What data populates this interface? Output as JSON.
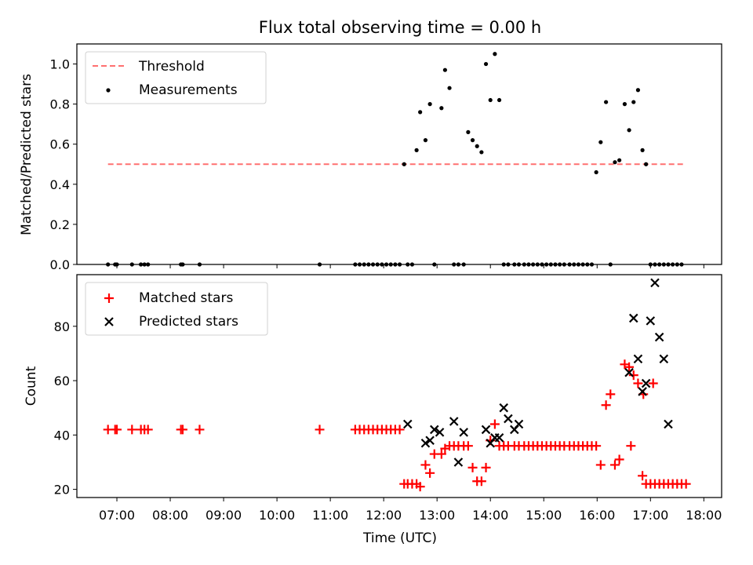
{
  "chart_data": [
    {
      "type": "scatter",
      "title": "Flux total observing time = 0.00 h",
      "xlabel": "",
      "ylabel": "Matched/Predicted stars",
      "ylim": [
        0,
        1.1
      ],
      "yticks": [
        "0.0",
        "0.2",
        "0.4",
        "0.6",
        "0.8",
        "1.0"
      ],
      "legend_position": "top-left",
      "threshold": {
        "name": "Threshold",
        "value": 0.5,
        "x_start": "06:50",
        "x_end": "17:37",
        "color": "#ff7070",
        "style": "dashed"
      },
      "series": [
        {
          "name": "Measurements",
          "color": "#000000",
          "marker": "dot",
          "x": [
            "06:50",
            "06:58",
            "07:00",
            "07:17",
            "07:27",
            "07:31",
            "07:35",
            "08:12",
            "08:14",
            "08:33",
            "10:48",
            "11:28",
            "11:33",
            "11:38",
            "11:43",
            "11:48",
            "11:53",
            "11:58",
            "12:03",
            "12:08",
            "12:13",
            "12:18",
            "12:23",
            "12:27",
            "12:32",
            "12:37",
            "12:41",
            "12:47",
            "12:52",
            "12:57",
            "13:05",
            "13:09",
            "13:14",
            "13:19",
            "13:24",
            "13:30",
            "13:35",
            "13:40",
            "13:45",
            "13:50",
            "13:55",
            "14:00",
            "14:05",
            "14:10",
            "14:15",
            "14:20",
            "14:27",
            "14:32",
            "14:38",
            "14:43",
            "14:48",
            "14:53",
            "14:58",
            "15:03",
            "15:08",
            "15:13",
            "15:18",
            "15:23",
            "15:29",
            "15:34",
            "15:39",
            "15:44",
            "15:49",
            "15:54",
            "15:59",
            "16:04",
            "16:10",
            "16:15",
            "16:20",
            "16:25",
            "16:31",
            "16:36",
            "16:41",
            "16:46",
            "16:51",
            "16:55",
            "17:00",
            "17:05",
            "17:10",
            "17:15",
            "17:20",
            "17:25",
            "17:30",
            "17:35"
          ],
          "y": [
            0,
            0,
            0,
            0,
            0,
            0,
            0,
            0,
            0,
            0,
            0,
            0,
            0,
            0,
            0,
            0,
            0,
            0,
            0,
            0,
            0,
            0,
            0.5,
            0,
            0,
            0.57,
            0.76,
            0.62,
            0.8,
            0,
            0.78,
            0.97,
            0.88,
            0,
            0,
            0,
            0.66,
            0.62,
            0.59,
            0.56,
            1.0,
            0.82,
            1.05,
            0.82,
            0,
            0,
            0,
            0,
            0,
            0,
            0,
            0,
            0,
            0,
            0,
            0,
            0,
            0,
            0,
            0,
            0,
            0,
            0,
            0,
            0.46,
            0.61,
            0.81,
            0,
            0.51,
            0.52,
            0.8,
            0.67,
            0.81,
            0.87,
            0.57,
            0.5,
            0,
            0,
            0,
            0,
            0,
            0,
            0,
            0
          ]
        }
      ]
    },
    {
      "type": "scatter",
      "xlabel": "Time (UTC)",
      "ylabel": "Count",
      "ylim": [
        17,
        99
      ],
      "yticks": [
        "20",
        "40",
        "60",
        "80"
      ],
      "xlim": [
        "06:15",
        "18:20"
      ],
      "xticks": [
        "07:00",
        "08:00",
        "09:00",
        "10:00",
        "11:00",
        "12:00",
        "13:00",
        "14:00",
        "15:00",
        "16:00",
        "17:00",
        "18:00"
      ],
      "legend_position": "top-left",
      "series": [
        {
          "name": "Matched stars",
          "color": "#ff0000",
          "marker": "plus",
          "x": [
            "06:50",
            "06:58",
            "07:00",
            "07:17",
            "07:27",
            "07:31",
            "07:35",
            "08:12",
            "08:14",
            "08:33",
            "10:48",
            "11:28",
            "11:33",
            "11:38",
            "11:43",
            "11:48",
            "11:53",
            "11:58",
            "12:03",
            "12:08",
            "12:13",
            "12:18",
            "12:23",
            "12:27",
            "12:32",
            "12:37",
            "12:41",
            "12:47",
            "12:52",
            "12:57",
            "13:05",
            "13:09",
            "13:14",
            "13:19",
            "13:24",
            "13:30",
            "13:35",
            "13:40",
            "13:45",
            "13:50",
            "13:55",
            "14:00",
            "14:05",
            "14:10",
            "14:15",
            "14:20",
            "14:27",
            "14:32",
            "14:38",
            "14:43",
            "14:48",
            "14:53",
            "14:58",
            "15:03",
            "15:08",
            "15:13",
            "15:18",
            "15:23",
            "15:29",
            "15:34",
            "15:39",
            "15:44",
            "15:49",
            "15:54",
            "15:59",
            "16:04",
            "16:10",
            "16:15",
            "16:20",
            "16:25",
            "16:31",
            "16:36",
            "16:41",
            "16:46",
            "16:51",
            "16:55",
            "17:00",
            "17:05",
            "17:10",
            "17:15",
            "17:20",
            "17:25",
            "17:30",
            "17:35",
            "17:40",
            "16:38",
            "16:52",
            "17:03"
          ],
          "y": [
            42,
            42,
            42,
            42,
            42,
            42,
            42,
            42,
            42,
            42,
            42,
            42,
            42,
            42,
            42,
            42,
            42,
            42,
            42,
            42,
            42,
            42,
            22,
            22,
            22,
            22,
            21,
            29,
            26,
            33,
            33,
            35,
            36,
            36,
            36,
            36,
            36,
            28,
            23,
            23,
            28,
            38,
            44,
            36,
            36,
            36,
            36,
            36,
            36,
            36,
            36,
            36,
            36,
            36,
            36,
            36,
            36,
            36,
            36,
            36,
            36,
            36,
            36,
            36,
            36,
            29,
            51,
            55,
            29,
            31,
            66,
            65,
            62,
            59,
            25,
            22,
            22,
            22,
            22,
            22,
            22,
            22,
            22,
            22,
            22,
            36,
            55,
            59
          ]
        },
        {
          "name": "Predicted stars",
          "color": "#000000",
          "marker": "x",
          "x": [
            "12:27",
            "12:47",
            "12:52",
            "12:57",
            "13:03",
            "13:19",
            "13:24",
            "13:30",
            "13:55",
            "14:00",
            "14:05",
            "14:10",
            "14:15",
            "14:20",
            "14:27",
            "14:32",
            "16:36",
            "16:41",
            "16:46",
            "16:51",
            "16:55",
            "17:00",
            "17:05",
            "17:10",
            "17:15",
            "17:20"
          ],
          "y": [
            44,
            37,
            38,
            42,
            41,
            45,
            30,
            41,
            42,
            37,
            39,
            39,
            50,
            46,
            42,
            44,
            63,
            83,
            68,
            56,
            59,
            82,
            96,
            76,
            68,
            44
          ]
        }
      ]
    }
  ]
}
